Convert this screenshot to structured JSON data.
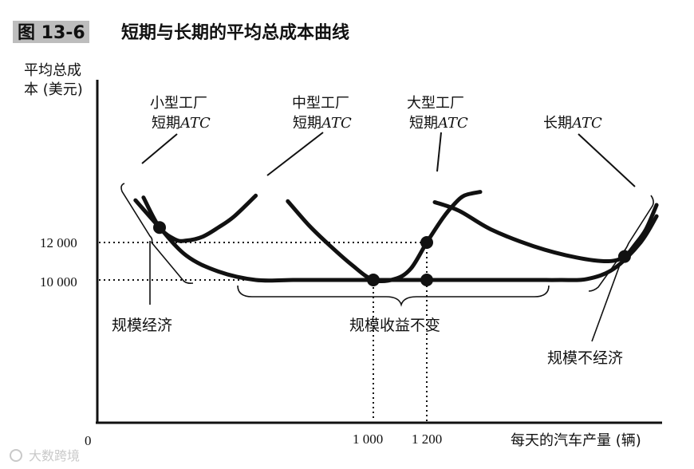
{
  "figure_number": "图 13-6",
  "title": "短期与长期的平均总成本曲线",
  "watermark": "大数跨境",
  "chart_data": {
    "type": "line",
    "title": "短期与长期的平均总成本曲线",
    "ylabel_line1": "平均总成",
    "ylabel_line2": "本 (美元)",
    "xlabel": "每天的汽车产量 (辆)",
    "origin_label": "0",
    "x_ticks": [
      {
        "value": 1000,
        "label": "1 000"
      },
      {
        "value": 1200,
        "label": "1 200"
      }
    ],
    "y_ticks": [
      {
        "value": 12000,
        "label": "12 000"
      },
      {
        "value": 10000,
        "label": "10 000"
      }
    ],
    "series": [
      {
        "key": "small",
        "name_line1": "小型工厂",
        "name_line2_text": "短期",
        "name_line2_italic": "ATC",
        "x": [
          140,
          200,
          260,
          300,
          360,
          420,
          480,
          560
        ],
        "y": [
          14400,
          12800,
          12150,
          12100,
          12300,
          12800,
          13400,
          14500
        ]
      },
      {
        "key": "medium",
        "name_line1": "中型工厂",
        "name_line2_text": "短期",
        "name_line2_italic": "ATC",
        "x": [
          680,
          760,
          840,
          920,
          1000,
          1080,
          1140,
          1200,
          1260,
          1300,
          1340,
          1400
        ],
        "y": [
          14200,
          12900,
          11800,
          10800,
          10000,
          10050,
          10600,
          12000,
          13300,
          14000,
          14500,
          14700
        ]
      },
      {
        "key": "large",
        "name_line1": "大型工厂",
        "name_line2_text": "短期",
        "name_line2_italic": "ATC",
        "x": [
          1230,
          1320,
          1440,
          1600,
          1760,
          1880,
          1940,
          1980,
          2020,
          2060
        ],
        "y": [
          14150,
          13700,
          12700,
          11800,
          11200,
          11000,
          11250,
          11900,
          12700,
          14000
        ]
      },
      {
        "key": "long",
        "name_line1": "",
        "name_line2_text": "长期",
        "name_line2_italic": "ATC",
        "x": [
          110,
          200,
          300,
          420,
          560,
          700,
          800,
          1000,
          1200,
          1400,
          1600,
          1700,
          1800,
          1900,
          2000,
          2060
        ],
        "y": [
          14250,
          12800,
          11300,
          10450,
          10000,
          10000,
          10000,
          10000,
          10000,
          10000,
          10000,
          10000,
          10050,
          10600,
          12000,
          13400
        ]
      }
    ],
    "points": [
      {
        "x": 200,
        "y": 12800
      },
      {
        "x": 1000,
        "y": 10000
      },
      {
        "x": 1200,
        "y": 12000
      },
      {
        "x": 1200,
        "y": 10000
      },
      {
        "x": 1940,
        "y": 11250
      }
    ],
    "annotations": [
      {
        "text": "规模经济"
      },
      {
        "text": "规模收益不变"
      },
      {
        "text": "规模不经济"
      }
    ],
    "grid": false,
    "legend": "none"
  }
}
